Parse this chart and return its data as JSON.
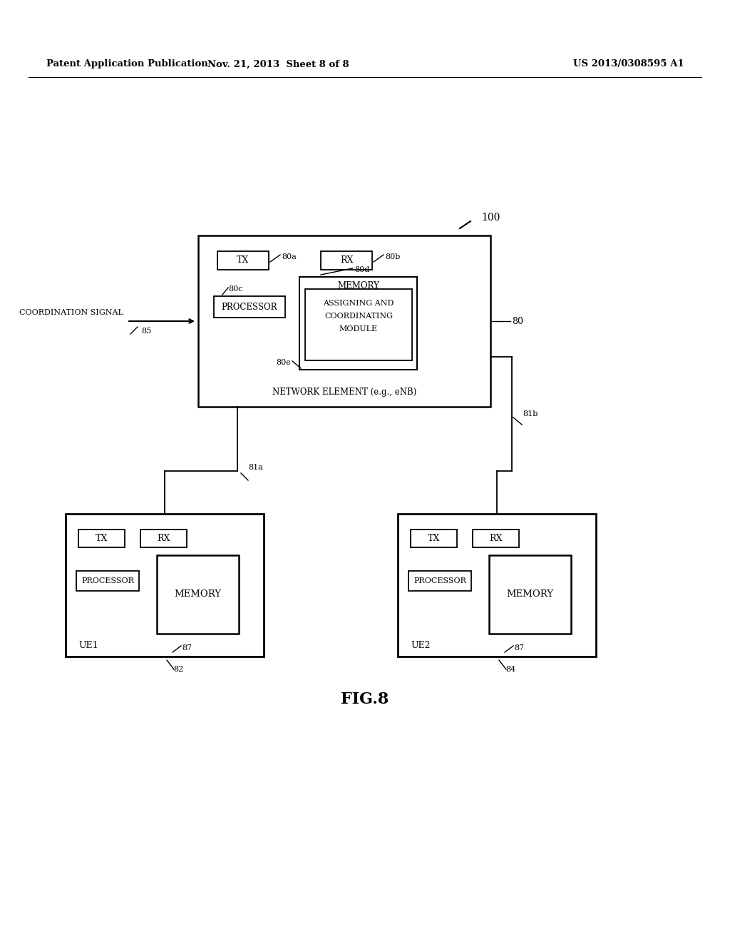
{
  "bg_color": "#ffffff",
  "header_left": "Patent Application Publication",
  "header_mid": "Nov. 21, 2013  Sheet 8 of 8",
  "header_right": "US 2013/0308595 A1",
  "fig_label": "FIG.8",
  "ref_100": "100",
  "ref_80": "80",
  "ref_80a": "80a",
  "ref_80b": "80b",
  "ref_80c": "80c",
  "ref_80d": "80d",
  "ref_80e": "80e",
  "ref_81a": "81a",
  "ref_81b": "81b",
  "ref_82": "82",
  "ref_84": "84",
  "ref_85": "85",
  "ref_87": "87",
  "label_tx": "TX",
  "label_rx": "RX",
  "label_processor": "PROCESSOR",
  "label_memory": "MEMORY",
  "label_memory_module_line1": "MEMORY",
  "label_memory_module_line2": "ASSIGNING AND",
  "label_memory_module_line3": "COORDINATING",
  "label_memory_module_line4": "MODULE",
  "label_network": "NETWORK ELEMENT (e.g., eNB)",
  "label_coord_signal": "COORDINATION SIGNAL",
  "label_ue1": "UE1",
  "label_ue2": "UE2"
}
